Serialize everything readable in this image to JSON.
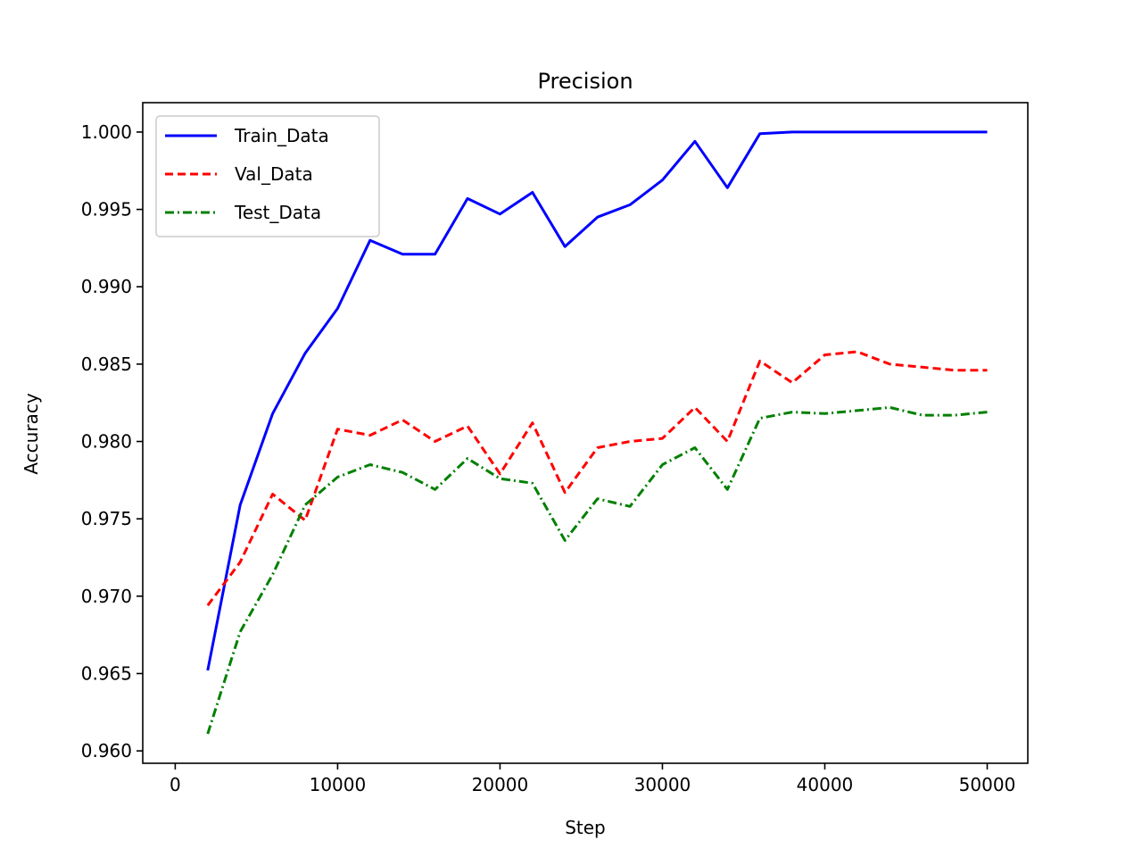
{
  "chart_data": {
    "type": "line",
    "title": "Precision",
    "xlabel": "Step",
    "ylabel": "Accuracy",
    "xlim": [
      -2000,
      52500
    ],
    "ylim": [
      0.9592,
      1.0019
    ],
    "xticks": [
      0,
      10000,
      20000,
      30000,
      40000,
      50000
    ],
    "xtick_labels": [
      "0",
      "10000",
      "20000",
      "30000",
      "40000",
      "50000"
    ],
    "yticks": [
      0.96,
      0.965,
      0.97,
      0.975,
      0.98,
      0.985,
      0.99,
      0.995,
      1.0
    ],
    "ytick_labels": [
      "0.960",
      "0.965",
      "0.970",
      "0.975",
      "0.980",
      "0.985",
      "0.990",
      "0.995",
      "1.000"
    ],
    "grid": false,
    "legend_position": "top-left",
    "x": [
      2000,
      4000,
      6000,
      8000,
      10000,
      12000,
      14000,
      16000,
      18000,
      20000,
      22000,
      24000,
      26000,
      28000,
      30000,
      32000,
      34000,
      36000,
      38000,
      40000,
      42000,
      44000,
      46000,
      48000,
      50000
    ],
    "series": [
      {
        "name": "Train_Data",
        "color": "#0000ff",
        "style": "solid",
        "values": [
          0.9652,
          0.9759,
          0.9818,
          0.9857,
          0.9886,
          0.993,
          0.9921,
          0.9921,
          0.9957,
          0.9947,
          0.9961,
          0.9926,
          0.9945,
          0.9953,
          0.9969,
          0.9994,
          0.9964,
          0.9999,
          1.0,
          1.0,
          1.0,
          1.0,
          1.0,
          1.0,
          1.0
        ]
      },
      {
        "name": "Val_Data",
        "color": "#ff0000",
        "style": "dashed",
        "values": [
          0.9694,
          0.9722,
          0.9766,
          0.9749,
          0.9808,
          0.9804,
          0.9814,
          0.98,
          0.981,
          0.9779,
          0.9812,
          0.9767,
          0.9796,
          0.98,
          0.9802,
          0.9822,
          0.98,
          0.9852,
          0.9838,
          0.9856,
          0.9858,
          0.985,
          0.9848,
          0.9846,
          0.9846
        ]
      },
      {
        "name": "Test_Data",
        "color": "#008000",
        "style": "dashdot",
        "values": [
          0.9611,
          0.9677,
          0.9714,
          0.9759,
          0.9777,
          0.9785,
          0.978,
          0.9769,
          0.9789,
          0.9776,
          0.9773,
          0.9736,
          0.9763,
          0.9758,
          0.9785,
          0.9796,
          0.9769,
          0.9815,
          0.9819,
          0.9818,
          0.982,
          0.9822,
          0.9817,
          0.9817,
          0.9819
        ]
      }
    ]
  }
}
